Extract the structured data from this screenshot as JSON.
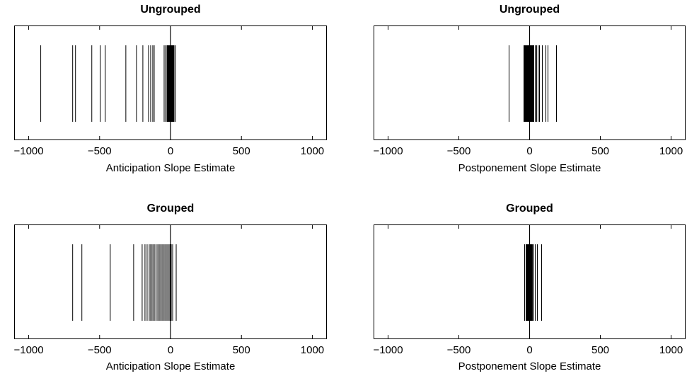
{
  "chart_data": [
    {
      "type": "rug",
      "title": "Ungrouped",
      "xlabel": "Anticipation Slope Estimate",
      "xlim": [
        -1100,
        1100
      ],
      "xticks": [
        -1000,
        -500,
        0,
        500,
        1000
      ],
      "xtick_labels": [
        "−1000",
        "−500",
        "0",
        "500",
        "1000"
      ],
      "zero_line": 0,
      "values": [
        -915,
        -690,
        -670,
        -555,
        -495,
        -460,
        -315,
        -240,
        -195,
        -155,
        -140,
        -125,
        -115,
        -45,
        -35,
        -25,
        -20,
        -15,
        -10,
        -5,
        0,
        5,
        10,
        15,
        20,
        25,
        35
      ]
    },
    {
      "type": "rug",
      "title": "Ungrouped",
      "xlabel": "Postponement Slope Estimate",
      "xlim": [
        -1100,
        1100
      ],
      "xticks": [
        -1000,
        -500,
        0,
        500,
        1000
      ],
      "xtick_labels": [
        "−1000",
        "−500",
        "0",
        "500",
        "1000"
      ],
      "zero_line": 0,
      "values": [
        -145,
        -40,
        -35,
        -30,
        -25,
        -20,
        -15,
        -10,
        -5,
        0,
        5,
        10,
        15,
        20,
        25,
        30,
        40,
        50,
        60,
        70,
        90,
        115,
        130,
        190
      ]
    },
    {
      "type": "rug",
      "title": "Grouped",
      "xlabel": "Anticipation Slope Estimate",
      "xlim": [
        -1100,
        1100
      ],
      "xticks": [
        -1000,
        -500,
        0,
        500,
        1000
      ],
      "xtick_labels": [
        "−1000",
        "−500",
        "0",
        "500",
        "1000"
      ],
      "zero_line": 0,
      "values": [
        -690,
        -625,
        -425,
        -260,
        -200,
        -180,
        -165,
        -150,
        -140,
        -130,
        -120,
        -110,
        -95,
        -85,
        -75,
        -65,
        -55,
        -45,
        -35,
        -25,
        -15,
        -5,
        5,
        15,
        40
      ]
    },
    {
      "type": "rug",
      "title": "Grouped",
      "xlabel": "Postponement Slope Estimate",
      "xlim": [
        -1100,
        1100
      ],
      "xticks": [
        -1000,
        -500,
        0,
        500,
        1000
      ],
      "xtick_labels": [
        "−1000",
        "−500",
        "0",
        "500",
        "1000"
      ],
      "zero_line": 0,
      "values": [
        -35,
        -25,
        -20,
        -15,
        -10,
        -5,
        0,
        5,
        10,
        15,
        20,
        30,
        40,
        55,
        85
      ]
    }
  ]
}
